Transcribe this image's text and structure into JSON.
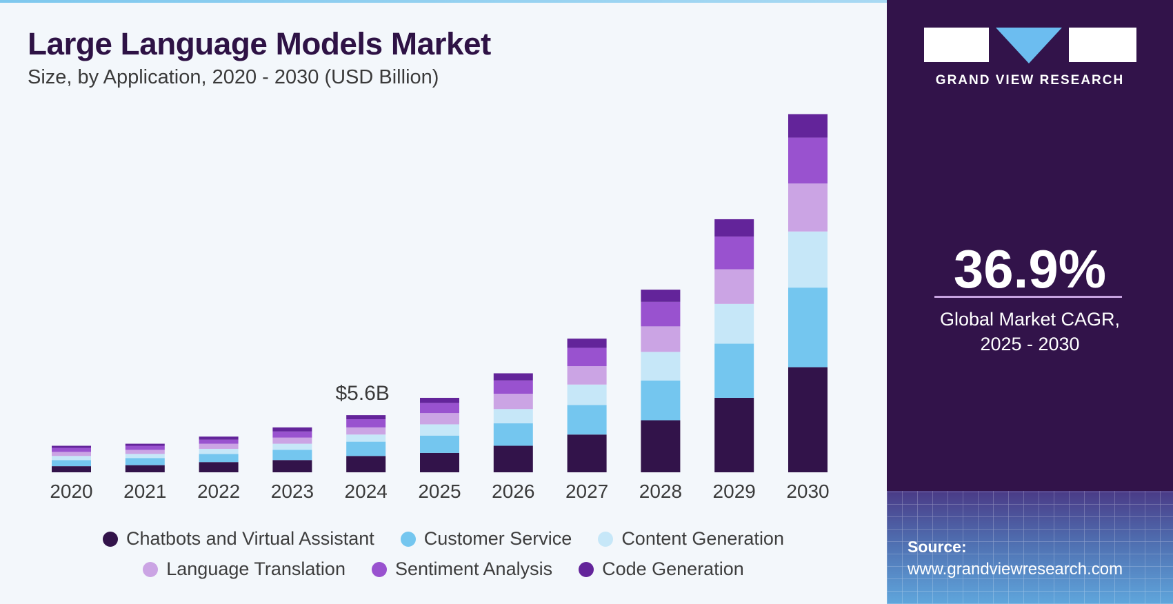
{
  "header": {
    "title": "Large Language Models Market",
    "subtitle": "Size, by Application, 2020 - 2030 (USD Billion)"
  },
  "sidebar": {
    "brand": "GRAND VIEW RESEARCH",
    "cagr_value": "36.9%",
    "cagr_label_line1": "Global Market CAGR,",
    "cagr_label_line2": "2025 - 2030",
    "source_label": "Source:",
    "source_url": "www.grandviewresearch.com"
  },
  "colors": {
    "title": "#2e1245",
    "sidebar_bg": "#32134a",
    "logo_triangle": "#6cbdf0"
  },
  "chart_data": {
    "type": "bar",
    "stacked": true,
    "title": "Large Language Models Market",
    "subtitle": "Size, by Application, 2020 - 2030 (USD Billion)",
    "xlabel": "",
    "ylabel": "",
    "ylim": [
      0,
      36
    ],
    "grid": false,
    "legend_position": "bottom",
    "categories": [
      "2020",
      "2021",
      "2022",
      "2023",
      "2024",
      "2025",
      "2026",
      "2027",
      "2028",
      "2029",
      "2030"
    ],
    "series": [
      {
        "name": "Chatbots and Virtual Assistant",
        "color": "#32134a",
        "values": [
          0.6,
          0.7,
          1.0,
          1.2,
          1.6,
          1.9,
          2.6,
          3.7,
          5.1,
          7.3,
          10.3
        ]
      },
      {
        "name": "Customer Service",
        "color": "#74c6ef",
        "values": [
          0.6,
          0.7,
          0.8,
          1.0,
          1.4,
          1.7,
          2.2,
          2.9,
          3.9,
          5.3,
          7.8
        ]
      },
      {
        "name": "Content Generation",
        "color": "#c6e7f8",
        "values": [
          0.4,
          0.4,
          0.5,
          0.6,
          0.7,
          1.1,
          1.4,
          2.0,
          2.8,
          3.9,
          5.5
        ]
      },
      {
        "name": "Language Translation",
        "color": "#cba4e4",
        "values": [
          0.4,
          0.4,
          0.5,
          0.6,
          0.7,
          1.1,
          1.5,
          1.8,
          2.5,
          3.4,
          4.7
        ]
      },
      {
        "name": "Sentiment Analysis",
        "color": "#9952cf",
        "values": [
          0.4,
          0.4,
          0.4,
          0.6,
          0.8,
          1.0,
          1.3,
          1.8,
          2.4,
          3.2,
          4.5
        ]
      },
      {
        "name": "Code Generation",
        "color": "#63249a",
        "values": [
          0.2,
          0.2,
          0.3,
          0.4,
          0.4,
          0.5,
          0.7,
          0.9,
          1.2,
          1.7,
          2.3
        ]
      }
    ],
    "annotations": [
      {
        "category": "2024",
        "text": "$5.6B"
      }
    ]
  }
}
